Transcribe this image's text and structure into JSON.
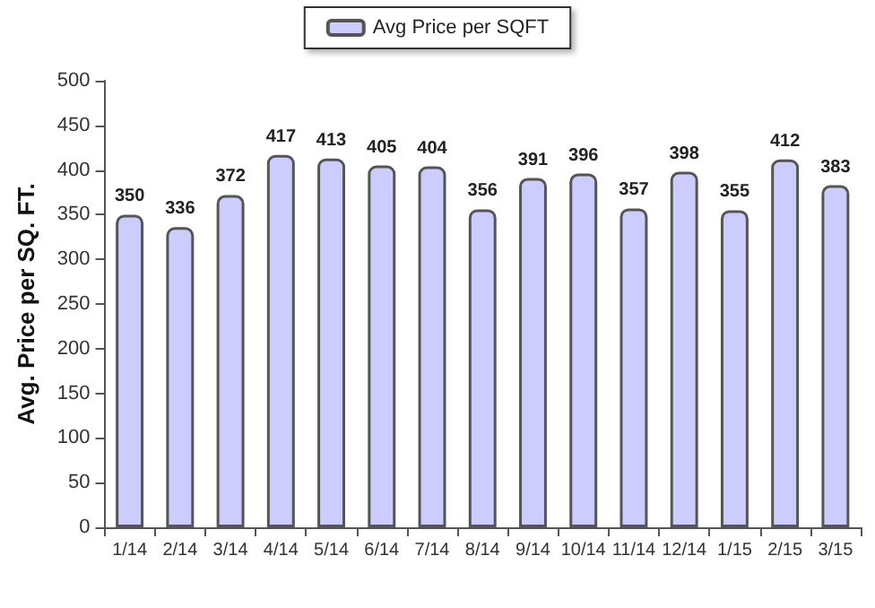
{
  "chart_data": {
    "type": "bar",
    "ylabel": "Avg. Price per SQ. FT.",
    "categories": [
      "1/14",
      "2/14",
      "3/14",
      "4/14",
      "5/14",
      "6/14",
      "7/14",
      "8/14",
      "9/14",
      "10/14",
      "11/14",
      "12/14",
      "1/15",
      "2/15",
      "3/15"
    ],
    "series": [
      {
        "name": "Avg Price per SQFT",
        "color": "#ccccff",
        "values": [
          350,
          336,
          372,
          417,
          413,
          405,
          404,
          356,
          391,
          396,
          357,
          398,
          355,
          412,
          383
        ]
      }
    ],
    "ylim": [
      0,
      500
    ],
    "yticks": [
      0,
      50,
      100,
      150,
      200,
      250,
      300,
      350,
      400,
      450,
      500
    ],
    "data_labels": true,
    "legend": "top",
    "grid": false
  }
}
